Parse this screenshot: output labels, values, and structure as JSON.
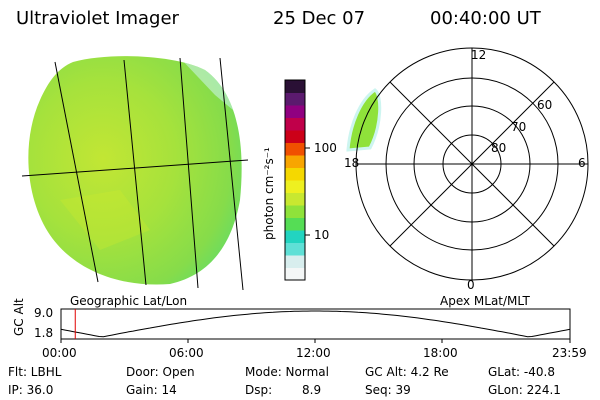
{
  "header": {
    "instrument": "Ultraviolet Imager",
    "date": "25 Dec 07",
    "time": "00:40:00 UT"
  },
  "colorbar": {
    "label": "photon cm⁻²s⁻¹",
    "ticks": [
      "100",
      "10"
    ],
    "colors": [
      "#f4f7f7",
      "#d8eeee",
      "#5fe0d6",
      "#22d4c0",
      "#55dd55",
      "#8fe23a",
      "#c8e830",
      "#eef020",
      "#f5d800",
      "#f8a500",
      "#f05000",
      "#cc0018",
      "#c0004a",
      "#900080",
      "#5b1a6e",
      "#2a1035"
    ]
  },
  "left_panel": {
    "label": "Geographic Lat/Lon"
  },
  "polar": {
    "label": "Apex MLat/MLT",
    "mlt_labels": [
      "12",
      "6",
      "0",
      "18"
    ],
    "mlat_labels": [
      "60",
      "70",
      "80"
    ]
  },
  "timeline": {
    "axis_label": "GC Alt",
    "y_ticks": [
      "9.0",
      "1.8"
    ],
    "x_ticks": [
      "00:00",
      "06:00",
      "12:00",
      "18:00",
      "23:59"
    ],
    "current_time_fraction": 0.028
  },
  "info": {
    "flt": "Flt: LBHL",
    "door": "Door: Open",
    "mode": "Mode: Normal",
    "gc_alt": "GC Alt: 4.2 Re",
    "glat": "GLat: -40.8",
    "ip": "IP: 36.0",
    "gain": "Gain: 14",
    "dsp_label": "Dsp:",
    "dsp_value": "8.9",
    "seq": "Seq: 39",
    "glon": "GLon: 224.1"
  }
}
